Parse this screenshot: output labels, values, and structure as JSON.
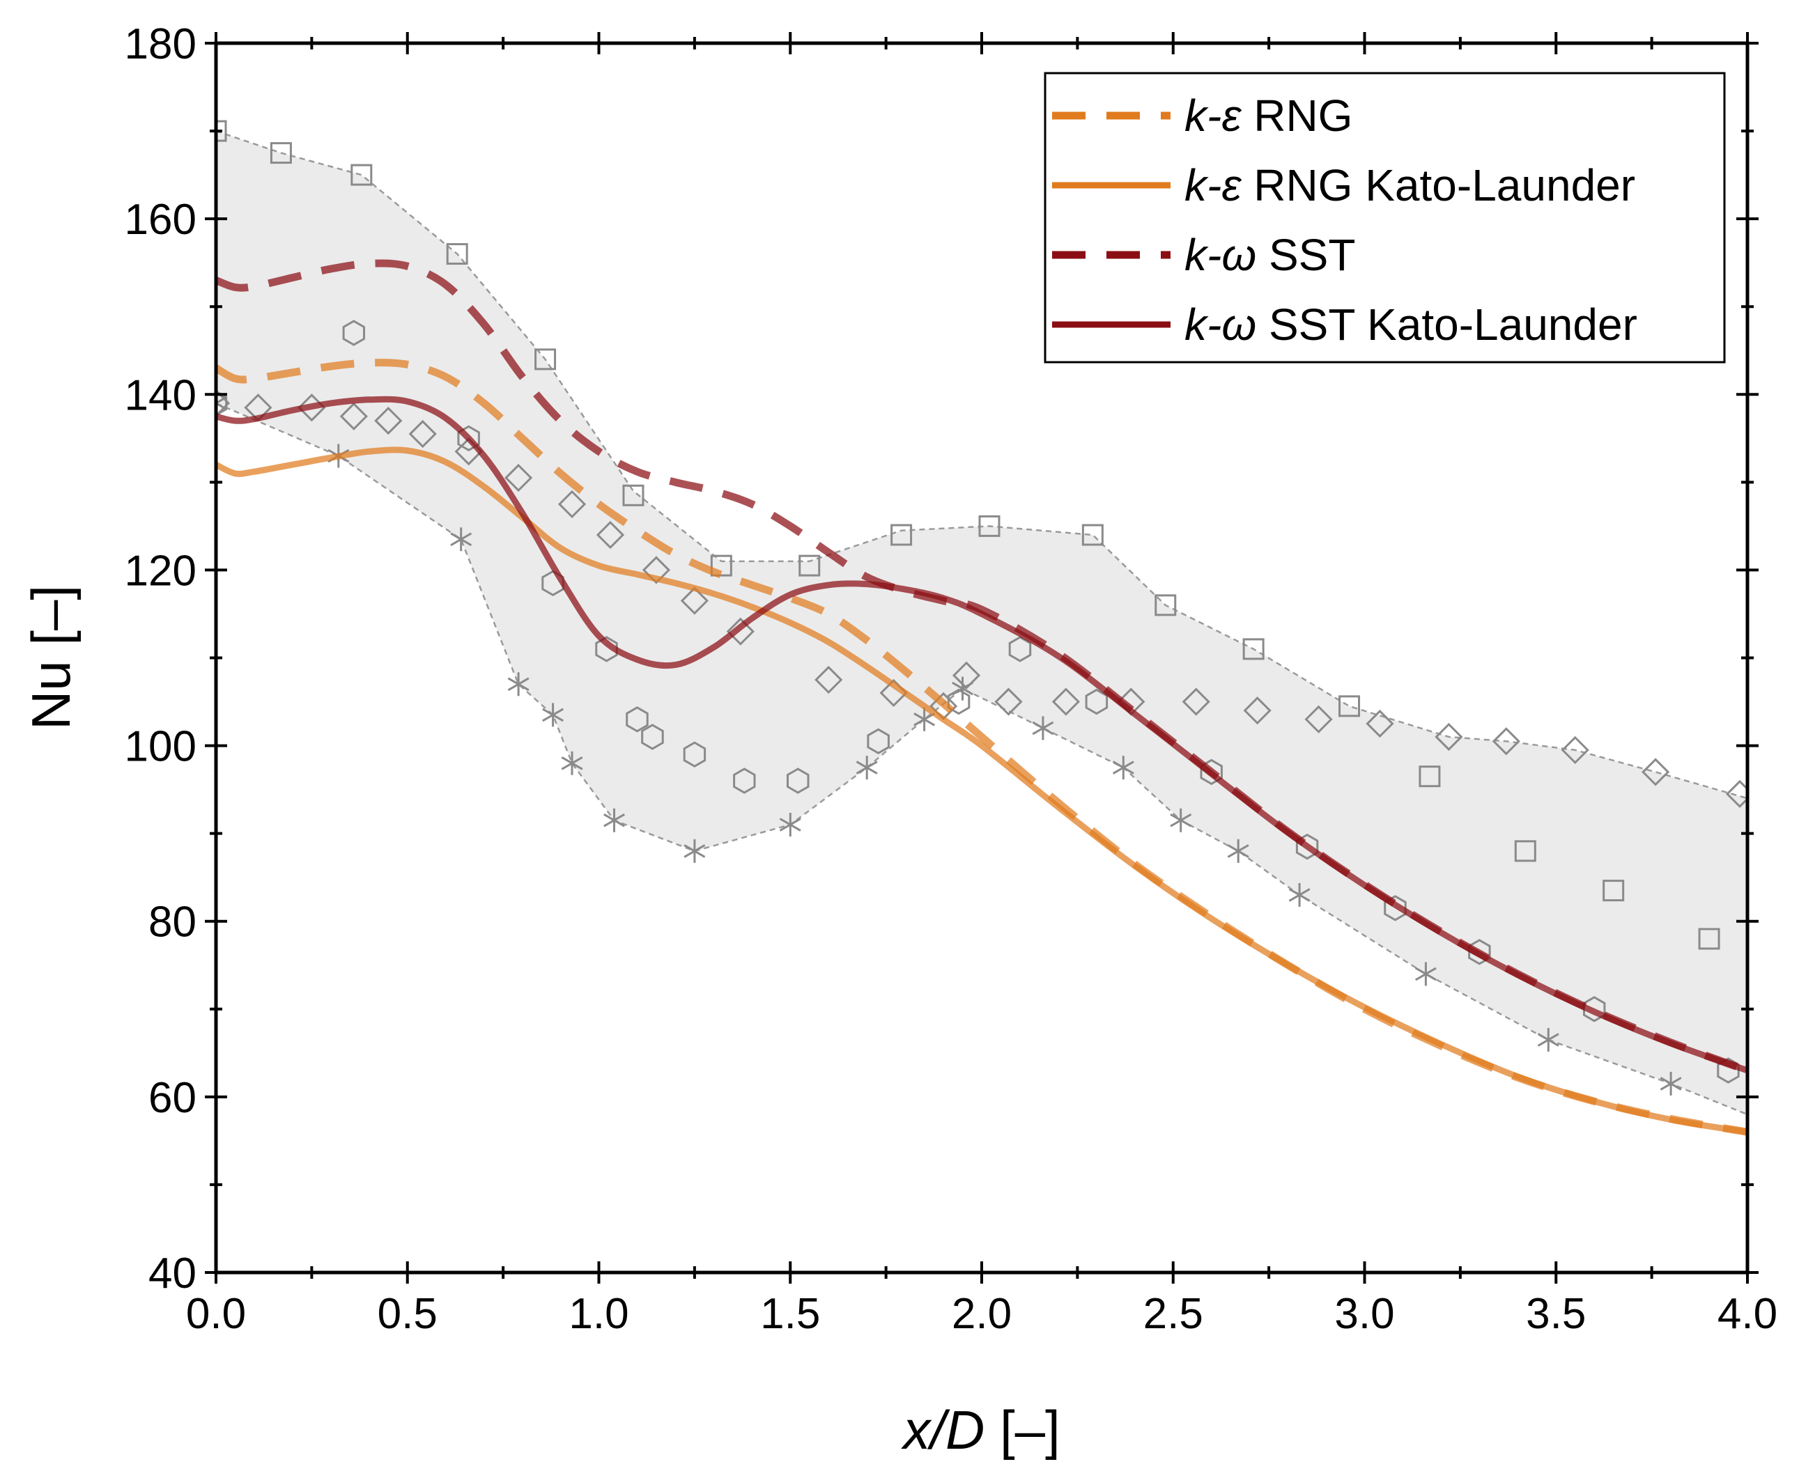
{
  "chart_data": {
    "type": "line",
    "xlabel": {
      "italic": "x/D",
      "rest": " [–]"
    },
    "ylabel": "Nu [–]",
    "xlim": [
      0,
      4
    ],
    "ylim": [
      40,
      180
    ],
    "x_ticks": [
      0,
      0.5,
      1,
      1.5,
      2,
      2.5,
      3,
      3.5,
      4
    ],
    "x_tick_labels": [
      "0.0",
      "0.5",
      "1.0",
      "1.5",
      "2.0",
      "2.5",
      "3.0",
      "3.5",
      "4.0"
    ],
    "y_ticks": [
      40,
      60,
      80,
      100,
      120,
      140,
      160,
      180
    ],
    "y_tick_labels": [
      "40",
      "60",
      "80",
      "100",
      "120",
      "140",
      "160",
      "180"
    ],
    "legend_position": "top-right",
    "colors": {
      "ke_rng": "#E07B1E",
      "kw_sst": "#8B0E14",
      "band": "#EBEBEB",
      "marker": "#8A8A8A"
    },
    "series": [
      {
        "id": "ke_rng",
        "name_italic": "k-ε",
        "name_rest": " RNG",
        "color": "#E07B1E",
        "dash": true,
        "x": [
          0,
          0.05,
          0.1,
          0.2,
          0.3,
          0.4,
          0.5,
          0.6,
          0.7,
          0.8,
          0.9,
          1.0,
          1.1,
          1.2,
          1.3,
          1.4,
          1.5,
          1.6,
          1.7,
          1.8,
          1.9,
          2.0,
          2.2,
          2.4,
          2.6,
          2.8,
          3.0,
          3.2,
          3.4,
          3.6,
          3.8,
          4.0
        ],
        "y": [
          143,
          141.8,
          141.8,
          142.5,
          143.2,
          143.6,
          143.4,
          142,
          139,
          135,
          131,
          127.5,
          124.5,
          121.8,
          119.8,
          118.3,
          116.8,
          115,
          112,
          108.5,
          104.8,
          101,
          93.5,
          86.5,
          80.5,
          75,
          70,
          65.8,
          62.2,
          59.5,
          57.5,
          56
        ]
      },
      {
        "id": "ke_rng_kl",
        "name_italic": "k-ε",
        "name_rest": " RNG Kato-Launder",
        "color": "#E07B1E",
        "dash": false,
        "x": [
          0,
          0.05,
          0.1,
          0.2,
          0.3,
          0.4,
          0.5,
          0.6,
          0.7,
          0.8,
          0.9,
          1.0,
          1.1,
          1.2,
          1.3,
          1.4,
          1.5,
          1.6,
          1.7,
          1.8,
          1.9,
          2.0,
          2.2,
          2.4,
          2.6,
          2.8,
          3.0,
          3.2,
          3.4,
          3.6,
          3.8,
          4.0
        ],
        "y": [
          132,
          131,
          131.2,
          132,
          132.8,
          133.5,
          133.6,
          132.3,
          129.5,
          126,
          122.5,
          120.5,
          119.5,
          118.5,
          117.3,
          115.8,
          114,
          111.8,
          109,
          106,
          103,
          100,
          93,
          86.3,
          80.3,
          75,
          70.2,
          66,
          62.3,
          59.5,
          57.4,
          56
        ]
      },
      {
        "id": "kw_sst",
        "name_italic": "k-ω",
        "name_rest": " SST",
        "color": "#8B0E14",
        "dash": true,
        "x": [
          0,
          0.05,
          0.1,
          0.2,
          0.3,
          0.4,
          0.5,
          0.6,
          0.7,
          0.8,
          0.9,
          1.0,
          1.1,
          1.2,
          1.3,
          1.4,
          1.5,
          1.6,
          1.7,
          1.8,
          1.9,
          2.0,
          2.2,
          2.4,
          2.6,
          2.8,
          3.0,
          3.2,
          3.4,
          3.6,
          3.8,
          4.0
        ],
        "y": [
          153,
          152.2,
          152.3,
          153.3,
          154.3,
          154.9,
          154.6,
          152.5,
          148,
          142,
          137,
          133.5,
          131.2,
          130,
          129,
          127.5,
          125,
          122,
          119.2,
          117.6,
          116.5,
          115.5,
          110.5,
          103.8,
          97,
          90.2,
          84.2,
          78.8,
          74,
          69.8,
          66.2,
          63
        ]
      },
      {
        "id": "kw_sst_kl",
        "name_italic": "k-ω",
        "name_rest": " SST Kato-Launder",
        "color": "#8B0E14",
        "dash": false,
        "x": [
          0,
          0.05,
          0.1,
          0.2,
          0.3,
          0.4,
          0.5,
          0.6,
          0.7,
          0.8,
          0.9,
          1.0,
          1.1,
          1.2,
          1.3,
          1.4,
          1.5,
          1.6,
          1.7,
          1.8,
          1.9,
          2.0,
          2.2,
          2.4,
          2.6,
          2.8,
          3.0,
          3.2,
          3.4,
          3.6,
          3.8,
          4.0
        ],
        "y": [
          137.5,
          137,
          137.2,
          138.2,
          139,
          139.4,
          139.2,
          137.3,
          133,
          126.5,
          119,
          112.5,
          109.8,
          109.2,
          111.2,
          114.5,
          117.2,
          118.3,
          118.4,
          117.8,
          116.8,
          115,
          110.2,
          103.6,
          96.8,
          90.1,
          84.1,
          78.7,
          73.9,
          69.7,
          66.1,
          63
        ]
      }
    ],
    "experimental_band": {
      "upper": {
        "x": [
          0,
          0.17,
          0.38,
          0.63,
          0.86,
          1.09,
          1.32,
          1.55,
          1.79,
          2.02,
          2.29,
          2.48,
          2.71,
          2.96,
          3.22,
          3.37,
          3.55,
          3.76,
          4.0
        ],
        "y": [
          170,
          167.5,
          165,
          156,
          144,
          129,
          121,
          121,
          124.5,
          125,
          124,
          116,
          111,
          104.5,
          101,
          100.5,
          99.5,
          97,
          94
        ]
      },
      "lower": {
        "x": [
          0,
          0.32,
          0.64,
          0.79,
          0.88,
          0.93,
          1.04,
          1.25,
          1.5,
          1.7,
          1.85,
          1.95,
          2.16,
          2.37,
          2.52,
          2.67,
          2.83,
          3.16,
          3.48,
          3.8,
          4.0
        ],
        "y": [
          139,
          133,
          123.5,
          107,
          103.5,
          98,
          91.5,
          88,
          91,
          97.5,
          103,
          106.5,
          102,
          97.5,
          91.5,
          88,
          83,
          74,
          66.5,
          61.5,
          58
        ]
      }
    },
    "experimental_markers": [
      {
        "shape": "square",
        "x": [
          0,
          0.17,
          0.38,
          0.63,
          0.86,
          1.09,
          1.32,
          1.55,
          1.79,
          2.02,
          2.29,
          2.48,
          2.71,
          2.96,
          3.17,
          3.42,
          3.65,
          3.9
        ],
        "y": [
          170,
          167.5,
          165,
          156,
          144,
          128.5,
          120.5,
          120.5,
          124,
          125,
          124,
          116,
          111,
          104.5,
          96.5,
          88,
          83.5,
          78
        ]
      },
      {
        "shape": "diamond",
        "x": [
          0,
          0.11,
          0.25,
          0.36,
          0.45,
          0.54,
          0.66,
          0.79,
          0.93,
          1.03,
          1.15,
          1.25,
          1.37,
          1.6,
          1.77,
          1.9,
          1.96,
          2.07,
          2.22,
          2.39,
          2.56,
          2.72,
          2.88,
          3.04,
          3.22,
          3.37,
          3.55,
          3.76,
          3.98
        ],
        "y": [
          139,
          138.5,
          138.5,
          137.5,
          137,
          135.5,
          133.5,
          130.5,
          127.5,
          124,
          120,
          116.5,
          113,
          107.5,
          106,
          104.5,
          108,
          105,
          105,
          105,
          105,
          104,
          103,
          102.5,
          101,
          100.5,
          99.5,
          97,
          94.5
        ]
      },
      {
        "shape": "hexagon",
        "x": [
          0,
          0.36,
          0.66,
          0.88,
          1.02,
          1.1,
          1.14,
          1.25,
          1.38,
          1.52,
          1.73,
          1.94,
          2.1,
          2.3,
          2.6,
          2.85,
          3.08,
          3.3,
          3.6,
          3.95
        ],
        "y": [
          139,
          147,
          135,
          118.5,
          111,
          103,
          101,
          99,
          96,
          96,
          100.5,
          105,
          111,
          105,
          97,
          88.5,
          81.5,
          76.5,
          70,
          63
        ]
      },
      {
        "shape": "asterisk",
        "x": [
          0,
          0.32,
          0.64,
          0.79,
          0.88,
          0.93,
          1.04,
          1.25,
          1.5,
          1.7,
          1.85,
          1.95,
          2.16,
          2.37,
          2.52,
          2.67,
          2.83,
          3.16,
          3.48,
          3.8
        ],
        "y": [
          139,
          133,
          123.5,
          107,
          103.5,
          98,
          91.5,
          88,
          91,
          97.5,
          103,
          106.5,
          102,
          97.5,
          91.5,
          88,
          83,
          74,
          66.5,
          61.5
        ]
      }
    ]
  }
}
